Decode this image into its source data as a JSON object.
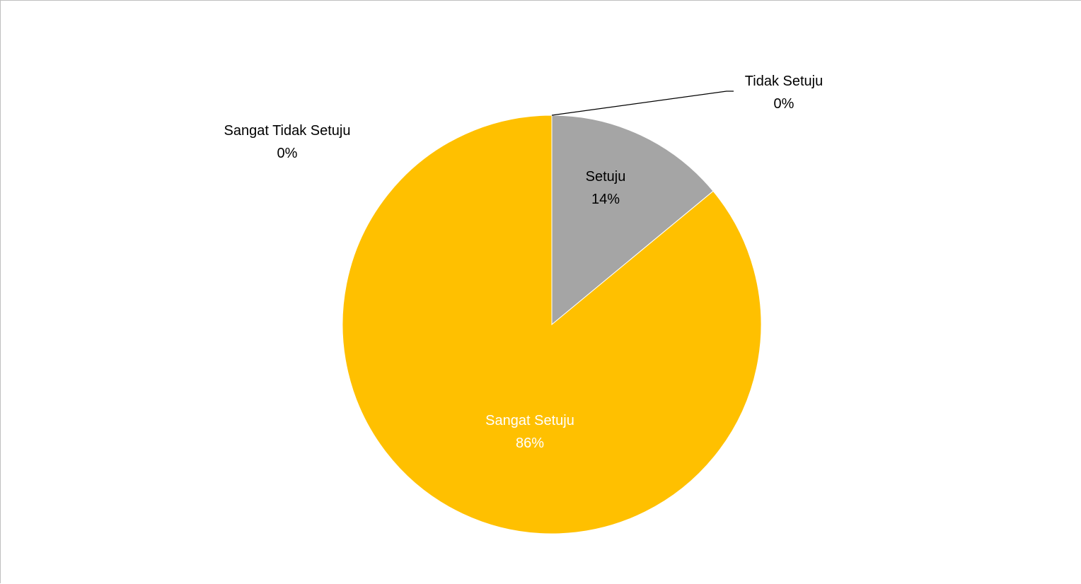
{
  "chart_data": {
    "type": "pie",
    "slices": [
      {
        "label": "Sangat Tidak Setuju",
        "value": 0,
        "percent_label": "0%",
        "color": "#4472C4",
        "label_color": "#000000"
      },
      {
        "label": "Tidak Setuju",
        "value": 0,
        "percent_label": "0%",
        "color": "#ED7D31",
        "label_color": "#000000"
      },
      {
        "label": "Setuju",
        "value": 14,
        "percent_label": "14%",
        "color": "#A5A5A5",
        "label_color": "#000000"
      },
      {
        "label": "Sangat Setuju",
        "value": 86,
        "percent_label": "86%",
        "color": "#FFC000",
        "label_color": "#ffffff"
      }
    ],
    "start_angle": "12 o'clock",
    "direction": "clockwise",
    "legend": "none"
  }
}
